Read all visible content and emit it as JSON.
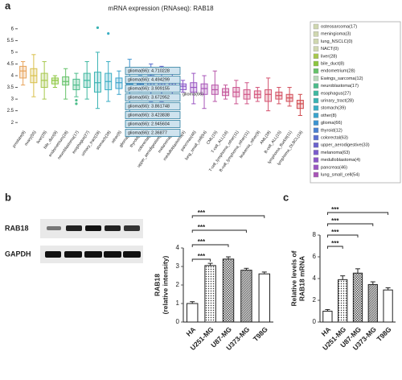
{
  "chart_data": [
    {
      "type": "box",
      "panel": "a",
      "title": "mRNA expression (RNAseq): RAB18",
      "categories": [
        "prostate(8)",
        "ovary(55)",
        "liver(28)",
        "bile_duct(8)",
        "endometrium(28)",
        "neuroblastoma(17)",
        "esophagus(27)",
        "urinary_tract(28)",
        "stomach(39)",
        "other(8)",
        "glioma(66)",
        "thyroid(12)",
        "colorectal(63)",
        "upper_aerodigestive(33)",
        "melanoma(63)",
        "medulloblastoma(4)",
        "pancreas(46)",
        "lung_small_cell(54)",
        "CML(15)",
        "T-cell_ALL(16)",
        "T-cell_lymphoma_other(11)",
        "B-cell_lymphoma_other(11)",
        "leukemia_other(9)",
        "AML(39)",
        "B-cell_ALL(15)",
        "lymphoma_Burkitt(11)",
        "lymphoma_DLBCL(18)"
      ],
      "colors": [
        "#e8a35a",
        "#d9c04a",
        "#a7c84e",
        "#8cc63f",
        "#66c26a",
        "#4cbc8a",
        "#3fb8a0",
        "#39b3b3",
        "#3aaec4",
        "#3aa3cc",
        "#3b93d0",
        "#4a80d0",
        "#5a6fd0",
        "#6a62cc",
        "#7b5ccc",
        "#8b58c8",
        "#9a56c2",
        "#a855b8",
        "#b855a8",
        "#c4559a",
        "#cc5590",
        "#d05586",
        "#d4557c",
        "#d45470",
        "#d45064",
        "#d24c58",
        "#d0484c"
      ],
      "boxes": [
        {
          "min": 3.6,
          "q1": 3.9,
          "median": 4.2,
          "q3": 4.4,
          "max": 4.6
        },
        {
          "min": 3.1,
          "q1": 3.7,
          "median": 4.0,
          "q3": 4.3,
          "max": 4.9
        },
        {
          "min": 3.0,
          "q1": 3.5,
          "median": 3.8,
          "q3": 4.1,
          "max": 4.6
        },
        {
          "min": 3.5,
          "q1": 3.65,
          "median": 3.8,
          "q3": 3.9,
          "max": 4.0
        },
        {
          "min": 3.0,
          "q1": 3.6,
          "median": 3.75,
          "q3": 3.95,
          "max": 4.3
        },
        {
          "min": 3.1,
          "q1": 3.4,
          "median": 3.6,
          "q3": 3.85,
          "max": 4.1,
          "outliers": [
            2.95,
            2.8
          ]
        },
        {
          "min": 3.0,
          "q1": 3.5,
          "median": 3.8,
          "q3": 4.1,
          "max": 4.6
        },
        {
          "min": 2.6,
          "q1": 3.3,
          "median": 3.7,
          "q3": 4.15,
          "max": 5.0,
          "outliers": [
            6.05
          ]
        },
        {
          "min": 2.9,
          "q1": 3.4,
          "median": 3.75,
          "q3": 4.1,
          "max": 4.6,
          "outliers": [
            5.8
          ]
        },
        {
          "min": 3.2,
          "q1": 3.45,
          "median": 3.7,
          "q3": 3.9,
          "max": 4.2
        },
        {
          "min": 2.4,
          "q1": 3.4,
          "median": 3.65,
          "q3": 3.9,
          "max": 4.7
        },
        {
          "min": 3.3,
          "q1": 3.5,
          "median": 3.65,
          "q3": 3.8,
          "max": 4.0
        },
        {
          "min": 2.9,
          "q1": 3.5,
          "median": 3.75,
          "q3": 4.0,
          "max": 4.5
        },
        {
          "min": 2.9,
          "q1": 3.4,
          "median": 3.7,
          "q3": 3.95,
          "max": 4.4
        },
        {
          "min": 3.0,
          "q1": 3.35,
          "median": 3.55,
          "q3": 3.75,
          "max": 4.2
        },
        {
          "min": 3.3,
          "q1": 3.4,
          "median": 3.55,
          "q3": 3.65,
          "max": 3.8
        },
        {
          "min": 2.8,
          "q1": 3.3,
          "median": 3.5,
          "q3": 3.7,
          "max": 4.1
        },
        {
          "min": 2.6,
          "q1": 3.2,
          "median": 3.45,
          "q3": 3.65,
          "max": 4.0
        },
        {
          "min": 2.9,
          "q1": 3.2,
          "median": 3.4,
          "q3": 3.6,
          "max": 4.2
        },
        {
          "min": 3.0,
          "q1": 3.15,
          "median": 3.3,
          "q3": 3.45,
          "max": 3.6
        },
        {
          "min": 2.8,
          "q1": 3.1,
          "median": 3.3,
          "q3": 3.5,
          "max": 3.8
        },
        {
          "min": 2.8,
          "q1": 3.0,
          "median": 3.2,
          "q3": 3.4,
          "max": 3.7
        },
        {
          "min": 2.9,
          "q1": 3.05,
          "median": 3.2,
          "q3": 3.35,
          "max": 3.5
        },
        {
          "min": 2.5,
          "q1": 2.9,
          "median": 3.2,
          "q3": 3.4,
          "max": 3.9
        },
        {
          "min": 2.8,
          "q1": 3.0,
          "median": 3.15,
          "q3": 3.3,
          "max": 3.5
        },
        {
          "min": 2.7,
          "q1": 2.9,
          "median": 3.05,
          "q3": 3.2,
          "max": 3.5
        },
        {
          "min": 2.3,
          "q1": 2.6,
          "median": 2.8,
          "q3": 2.95,
          "max": 3.2
        }
      ],
      "ylim": [
        1.8,
        6.2
      ],
      "yticks": [
        2,
        2.5,
        3,
        3.5,
        4,
        4.5,
        5,
        5.5,
        6
      ],
      "grid": false,
      "annotations": [
        "glioma(66): 4.710228",
        "glioma(66): 4.494299",
        "glioma(66): 3.909155",
        "glioma(66): 3.672952",
        "glioma(66): 3.861748",
        "glioma(66): 3.423838",
        "glioma(66): 2.945604",
        "glioma(66): 2.36877"
      ],
      "hover_label": "glioma(66)",
      "legend": [
        {
          "label": "osteosarcoma(17)",
          "color": "#cfd7b0",
          "disabled": true
        },
        {
          "label": "meningioma(3)",
          "color": "#cfd7b0",
          "disabled": true
        },
        {
          "label": "lung_NSCLC(0)",
          "color": "#cfd7b0",
          "disabled": true
        },
        {
          "label": "NACT(0)",
          "color": "#cfd7b0",
          "disabled": true
        },
        {
          "label": "liver(28)",
          "color": "#a7c84e",
          "disabled": false
        },
        {
          "label": "bile_duct(8)",
          "color": "#8cc63f",
          "disabled": false
        },
        {
          "label": "endometrium(28)",
          "color": "#66c26a",
          "disabled": false
        },
        {
          "label": "Ewings_sarcoma(12)",
          "color": "#b8d8b8",
          "disabled": true
        },
        {
          "label": "neuroblastoma(17)",
          "color": "#4cbc8a",
          "disabled": false
        },
        {
          "label": "esophagus(27)",
          "color": "#3fb8a0",
          "disabled": false
        },
        {
          "label": "urinary_tract(28)",
          "color": "#39b3b3",
          "disabled": false
        },
        {
          "label": "stomach(39)",
          "color": "#3aaec4",
          "disabled": false
        },
        {
          "label": "other(8)",
          "color": "#3aa3cc",
          "disabled": false
        },
        {
          "label": "glioma(66)",
          "color": "#3b93d0",
          "disabled": false
        },
        {
          "label": "thyroid(12)",
          "color": "#4a80d0",
          "disabled": false
        },
        {
          "label": "colorectal(63)",
          "color": "#5a6fd0",
          "disabled": false
        },
        {
          "label": "upper_aerodigestive(33)",
          "color": "#6a62cc",
          "disabled": false
        },
        {
          "label": "melanoma(63)",
          "color": "#7b5ccc",
          "disabled": false
        },
        {
          "label": "medulloblastoma(4)",
          "color": "#8b58c8",
          "disabled": false
        },
        {
          "label": "pancreas(46)",
          "color": "#9a56c2",
          "disabled": false
        },
        {
          "label": "lung_small_cell(54)",
          "color": "#a855b8",
          "disabled": false
        }
      ]
    },
    {
      "type": "bar",
      "panel": "b",
      "ylabel": [
        "RAB18",
        "(relative intensity)"
      ],
      "categories": [
        "HA",
        "U251-MG",
        "U87-MG",
        "U373-MG",
        "T98G"
      ],
      "values": [
        1,
        3.05,
        3.4,
        2.8,
        2.6
      ],
      "errors": [
        0.1,
        0.12,
        0.12,
        0.1,
        0.1
      ],
      "patterns": [
        "none",
        "dots",
        "checker",
        "hatch",
        "none"
      ],
      "ylim": [
        0,
        4
      ],
      "yticks": [
        0,
        1,
        2,
        3,
        4
      ],
      "comparisons": [
        {
          "from": 0,
          "to": 1,
          "label": "***"
        },
        {
          "from": 0,
          "to": 2,
          "label": "***"
        },
        {
          "from": 0,
          "to": 3,
          "label": "***"
        },
        {
          "from": 0,
          "to": 4,
          "label": "***"
        }
      ],
      "blot_rows": [
        "RAB18",
        "GAPDH"
      ]
    },
    {
      "type": "bar",
      "panel": "c",
      "ylabel": [
        "Relative levels of",
        "RAB18 mRNA"
      ],
      "categories": [
        "HA",
        "U251-MG",
        "U87-MG",
        "U373-MG",
        "T98G"
      ],
      "values": [
        1,
        3.9,
        4.5,
        3.45,
        2.95
      ],
      "errors": [
        0.15,
        0.35,
        0.4,
        0.25,
        0.2
      ],
      "patterns": [
        "none",
        "dots",
        "checker",
        "hatch",
        "none"
      ],
      "ylim": [
        0,
        8
      ],
      "yticks": [
        0,
        2,
        4,
        6,
        8
      ],
      "comparisons": [
        {
          "from": 0,
          "to": 1,
          "label": "***"
        },
        {
          "from": 0,
          "to": 2,
          "label": "***"
        },
        {
          "from": 0,
          "to": 3,
          "label": "***"
        },
        {
          "from": 0,
          "to": 4,
          "label": "***"
        }
      ]
    }
  ]
}
